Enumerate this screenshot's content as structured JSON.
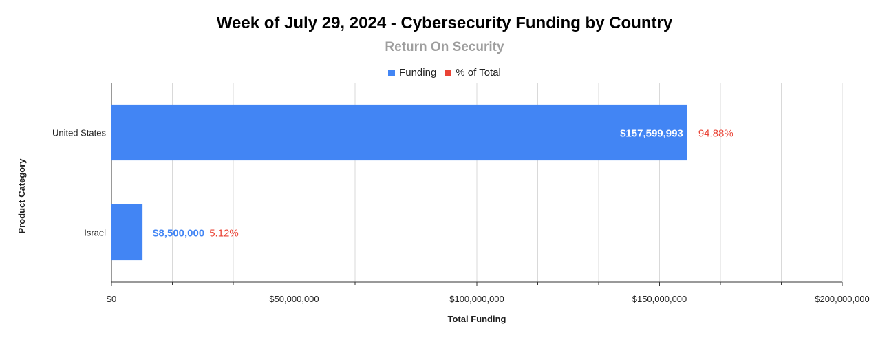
{
  "chart_data": {
    "type": "bar",
    "orientation": "horizontal",
    "title": "Week of July 29, 2024 - Cybersecurity Funding by Country",
    "subtitle": "Return On Security",
    "xlabel": "Total Funding",
    "ylabel": "Product Category",
    "categories": [
      "United States",
      "Israel"
    ],
    "series": [
      {
        "name": "Funding",
        "values": [
          157599993,
          8500000
        ],
        "labels": [
          "$157,599,993",
          "$8,500,000"
        ],
        "color": "#4285f4"
      },
      {
        "name": "% of Total",
        "values": [
          94.88,
          5.12
        ],
        "labels": [
          "94.88%",
          "5.12%"
        ],
        "color": "#ea4335"
      }
    ],
    "xlim": [
      0,
      200000000
    ],
    "x_ticks": [
      0,
      50000000,
      100000000,
      150000000,
      200000000
    ],
    "x_tick_labels": [
      "$0",
      "$50,000,000",
      "$100,000,000",
      "$150,000,000",
      "$200,000,000"
    ],
    "grid": true,
    "legend_position": "top"
  }
}
